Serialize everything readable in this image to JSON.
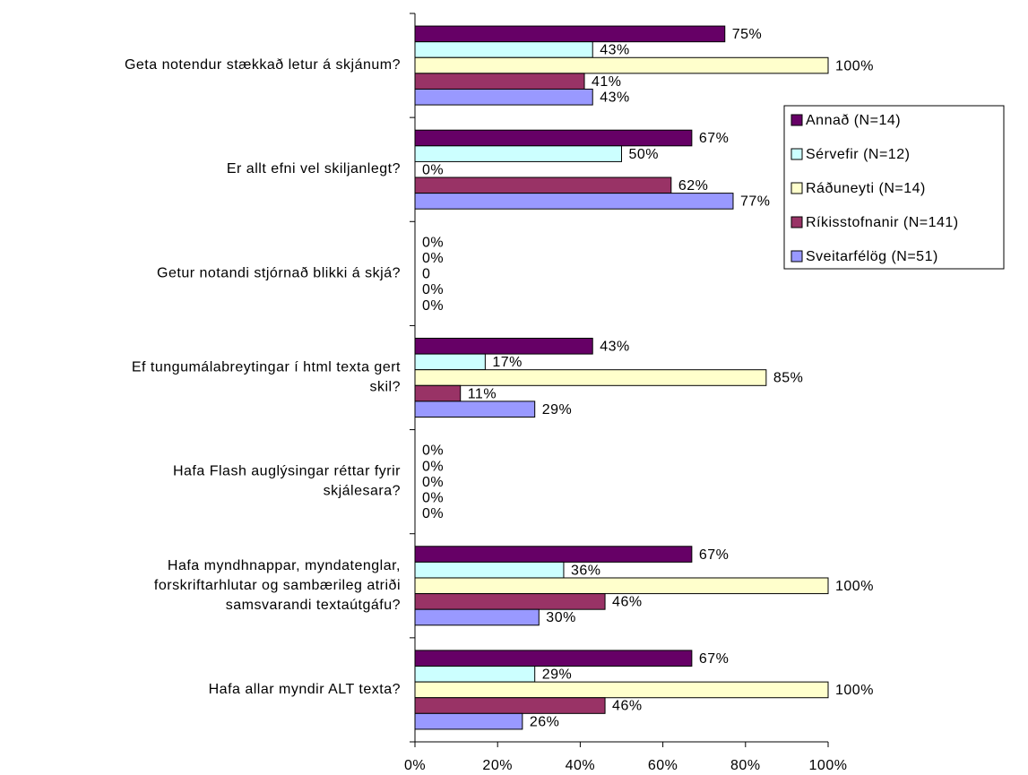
{
  "chart_data": {
    "type": "hbar",
    "categories": [
      "Geta notendur stækkað letur á skjánum?",
      "Er allt efni vel skiljanlegt?",
      "Getur notandi stjórnað blikki á skjá?",
      "Ef tungumálabreytingar í html texta gert\nskil?",
      "Hafa Flash auglýsingar réttar fyrir\nskjálesara?",
      "Hafa myndhnappar, myndatenglar,\nforskriftarhlutar og sambærileg atriði\nsamsvarandi textaútgáfu?",
      "Hafa allar myndir ALT texta?"
    ],
    "series": [
      {
        "name": "Annað (N=14)",
        "color": "#660066",
        "values": [
          75,
          67,
          0,
          43,
          0,
          67,
          67
        ],
        "value_labels": [
          "75%",
          "67%",
          "0%",
          "43%",
          "0%",
          "67%",
          "67%"
        ]
      },
      {
        "name": "Sérvefir (N=12)",
        "color": "#ccffff",
        "values": [
          43,
          50,
          0,
          17,
          0,
          36,
          29
        ],
        "value_labels": [
          "43%",
          "50%",
          "0%",
          "17%",
          "0%",
          "36%",
          "29%"
        ]
      },
      {
        "name": "Ráðuneyti (N=14)",
        "color": "#ffffcc",
        "values": [
          100,
          0,
          0,
          85,
          0,
          100,
          100
        ],
        "value_labels": [
          "100%",
          "0%",
          "0",
          "85%",
          "0%",
          "100%",
          "100%"
        ]
      },
      {
        "name": "Ríkisstofnanir (N=141)",
        "color": "#993366",
        "values": [
          41,
          62,
          0,
          11,
          0,
          46,
          46
        ],
        "value_labels": [
          "41%",
          "62%",
          "0%",
          "11%",
          "0%",
          "46%",
          "46%"
        ]
      },
      {
        "name": "Sveitarfélög (N=51)",
        "color": "#9999ff",
        "values": [
          43,
          77,
          0,
          29,
          0,
          30,
          26
        ],
        "value_labels": [
          "43%",
          "77%",
          "0%",
          "29%",
          "0%",
          "30%",
          "26%"
        ]
      }
    ],
    "xlim": [
      0,
      100
    ],
    "xticks": [
      {
        "value": 0,
        "label": "0%"
      },
      {
        "value": 20,
        "label": "20%"
      },
      {
        "value": 40,
        "label": "40%"
      },
      {
        "value": 60,
        "label": "60%"
      },
      {
        "value": 80,
        "label": "80%"
      },
      {
        "value": 100,
        "label": "100%"
      }
    ],
    "legend": "right"
  }
}
